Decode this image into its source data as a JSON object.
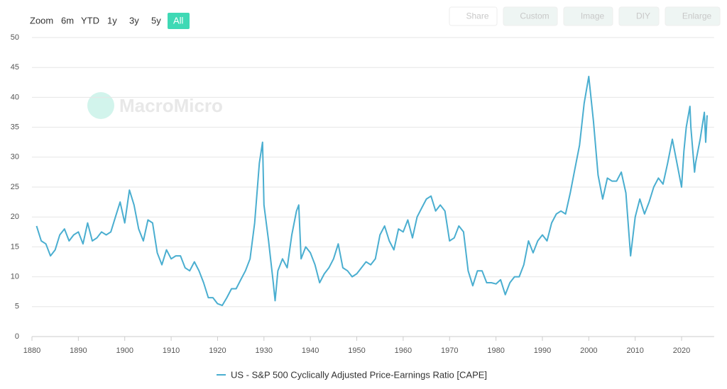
{
  "ui": {
    "zoom_label": "Zoom",
    "zoom_buttons": [
      {
        "label": "6m",
        "active": false
      },
      {
        "label": "YTD",
        "active": false
      },
      {
        "label": "1y",
        "active": false
      },
      {
        "label": "3y",
        "active": false
      },
      {
        "label": "5y",
        "active": false
      },
      {
        "label": "All",
        "active": true
      }
    ],
    "toolbar": [
      "Share",
      "Custom",
      "Image",
      "DIY",
      "Enlarge"
    ],
    "watermark": "MacroMicro"
  },
  "chart_data": {
    "type": "line",
    "x": [
      1881,
      1882,
      1883,
      1884,
      1885,
      1886,
      1887,
      1888,
      1889,
      1890,
      1891,
      1892,
      1893,
      1894,
      1895,
      1896,
      1897,
      1898,
      1899,
      1900,
      1901,
      1902,
      1903,
      1904,
      1905,
      1906,
      1907,
      1908,
      1909,
      1910,
      1911,
      1912,
      1913,
      1914,
      1915,
      1916,
      1917,
      1918,
      1919,
      1920,
      1921,
      1922,
      1923,
      1924,
      1925,
      1926,
      1927,
      1928,
      1929,
      1929.7,
      1930,
      1931,
      1932,
      1932.4,
      1933,
      1934,
      1935,
      1936,
      1937,
      1937.5,
      1938,
      1939,
      1940,
      1941,
      1942,
      1943,
      1944,
      1945,
      1946,
      1947,
      1948,
      1949,
      1950,
      1951,
      1952,
      1953,
      1954,
      1955,
      1956,
      1957,
      1958,
      1959,
      1960,
      1961,
      1962,
      1963,
      1964,
      1965,
      1966,
      1967,
      1968,
      1969,
      1970,
      1971,
      1972,
      1973,
      1974,
      1975,
      1976,
      1977,
      1978,
      1979,
      1980,
      1981,
      1982,
      1983,
      1984,
      1985,
      1986,
      1987,
      1988,
      1989,
      1990,
      1991,
      1992,
      1993,
      1994,
      1995,
      1996,
      1997,
      1998,
      1999,
      2000,
      2001,
      2002,
      2003,
      2004,
      2005,
      2006,
      2007,
      2008,
      2009,
      2010,
      2011,
      2012,
      2013,
      2014,
      2015,
      2016,
      2017,
      2018,
      2019,
      2020,
      2020.5,
      2021,
      2021.8,
      2022,
      2022.8,
      2023,
      2024,
      2024.9,
      2025.2,
      2025.5
    ],
    "series": [
      {
        "name": "US - S&P 500 Cyclically Adjusted Price-Earnings Ratio [CAPE]",
        "color": "#4aaed0",
        "values": [
          18.5,
          16,
          15.5,
          13.5,
          14.5,
          17,
          18,
          16,
          17,
          17.5,
          15.5,
          19,
          16,
          16.5,
          17.5,
          17,
          17.5,
          20,
          22.5,
          19,
          24.5,
          22,
          18,
          16,
          19.5,
          19,
          14,
          12,
          14.5,
          13,
          13.5,
          13.5,
          11.5,
          11,
          12.5,
          11,
          9,
          6.5,
          6.5,
          5.5,
          5.2,
          6.5,
          8,
          8,
          9.5,
          11,
          13,
          19,
          29,
          32.5,
          22,
          16,
          9,
          6,
          11,
          13,
          11.5,
          17,
          21,
          22,
          13,
          15,
          14,
          12,
          9,
          10.5,
          11.5,
          13,
          15.5,
          11.5,
          11,
          10,
          10.5,
          11.5,
          12.5,
          12,
          13,
          17,
          18.5,
          16,
          14.5,
          18,
          17.5,
          19.5,
          16.5,
          20,
          21.5,
          23,
          23.5,
          21,
          22,
          21,
          16,
          16.5,
          18.5,
          17.5,
          11,
          8.5,
          11,
          11,
          9,
          9,
          8.8,
          9.5,
          7,
          9,
          10,
          10,
          12,
          16,
          14,
          16,
          17,
          16,
          19,
          20.5,
          21,
          20.5,
          24,
          28,
          32,
          39,
          43.5,
          36,
          27,
          23,
          26.5,
          26,
          26,
          27.5,
          24,
          13.5,
          20,
          23,
          20.5,
          22.5,
          25,
          26.5,
          25.5,
          29,
          33,
          29,
          25,
          31,
          35,
          38.5,
          35,
          27.5,
          29,
          33,
          37.5,
          32.5,
          37
        ]
      }
    ],
    "xlim": [
      1880,
      2027
    ],
    "ylim": [
      0,
      50
    ],
    "xticks": [
      1880,
      1890,
      1900,
      1910,
      1920,
      1930,
      1940,
      1950,
      1960,
      1970,
      1980,
      1990,
      2000,
      2010,
      2020
    ],
    "yticks": [
      0,
      5,
      10,
      15,
      20,
      25,
      30,
      35,
      40,
      45,
      50
    ],
    "grid": true
  }
}
